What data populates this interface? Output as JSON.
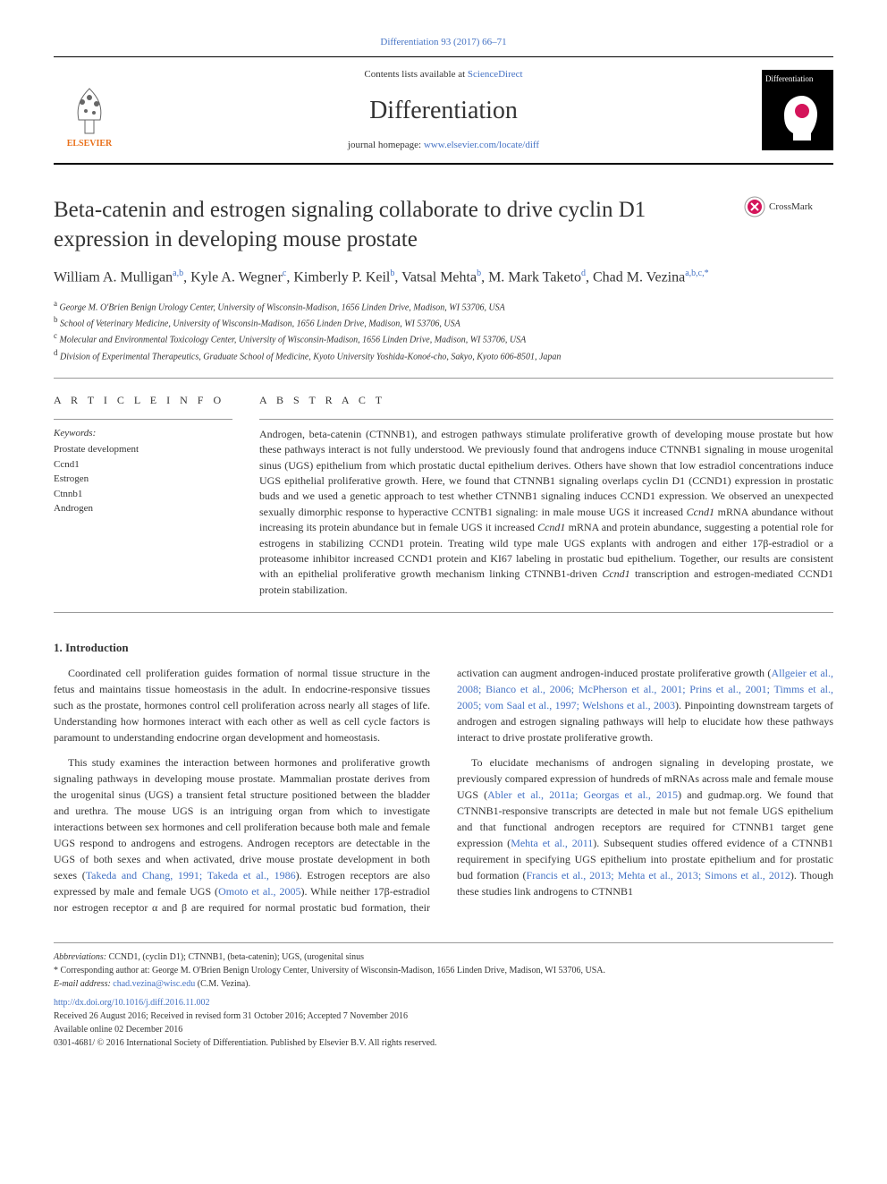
{
  "journal_ref": {
    "text": "Differentiation 93 (2017) 66–71",
    "url_label": "Differentiation 93 (2017) 66–71"
  },
  "header": {
    "contents_pre": "Contents lists available at ",
    "contents_link": "ScienceDirect",
    "journal_name": "Differentiation",
    "homepage_pre": "journal homepage: ",
    "homepage_link": "www.elsevier.com/locate/diff",
    "elsevier_label": "ELSEVIER",
    "diff_logo_label": "Differentiation"
  },
  "crossmark_label": "CrossMark",
  "title": "Beta-catenin and estrogen signaling collaborate to drive cyclin D1 expression in developing mouse prostate",
  "authors_html": "William A. Mulligan<sup>a,b</sup>, Kyle A. Wegner<sup>c</sup>, Kimberly P. Keil<sup>b</sup>, Vatsal Mehta<sup>b</sup>, M. Mark Taketo<sup>d</sup>, Chad M. Vezina<sup>a,b,c,*</sup>",
  "affiliations": [
    {
      "sup": "a",
      "text": "George M. O'Brien Benign Urology Center, University of Wisconsin-Madison, 1656 Linden Drive, Madison, WI 53706, USA"
    },
    {
      "sup": "b",
      "text": "School of Veterinary Medicine, University of Wisconsin-Madison, 1656 Linden Drive, Madison, WI 53706, USA"
    },
    {
      "sup": "c",
      "text": "Molecular and Environmental Toxicology Center, University of Wisconsin-Madison, 1656 Linden Drive, Madison, WI 53706, USA"
    },
    {
      "sup": "d",
      "text": "Division of Experimental Therapeutics, Graduate School of Medicine, Kyoto University Yoshida-Konoé-cho, Sakyo, Kyoto 606-8501, Japan"
    }
  ],
  "article_info_heading": "A R T I C L E  I N F O",
  "abstract_heading": "A B S T R A C T",
  "keywords_label": "Keywords:",
  "keywords": [
    "Prostate development",
    "Ccnd1",
    "Estrogen",
    "Ctnnb1",
    "Androgen"
  ],
  "abstract_text": "Androgen, beta-catenin (CTNNB1), and estrogen pathways stimulate proliferative growth of developing mouse prostate but how these pathways interact is not fully understood. We previously found that androgens induce CTNNB1 signaling in mouse urogenital sinus (UGS) epithelium from which prostatic ductal epithelium derives. Others have shown that low estradiol concentrations induce UGS epithelial proliferative growth. Here, we found that CTNNB1 signaling overlaps cyclin D1 (CCND1) expression in prostatic buds and we used a genetic approach to test whether CTNNB1 signaling induces CCND1 expression. We observed an unexpected sexually dimorphic response to hyperactive CCNTB1 signaling: in male mouse UGS it increased Ccnd1 mRNA abundance without increasing its protein abundance but in female UGS it increased Ccnd1 mRNA and protein abundance, suggesting a potential role for estrogens in stabilizing CCND1 protein. Treating wild type male UGS explants with androgen and either 17β-estradiol or a proteasome inhibitor increased CCND1 protein and KI67 labeling in prostatic bud epithelium. Together, our results are consistent with an epithelial proliferative growth mechanism linking CTNNB1-driven Ccnd1 transcription and estrogen-mediated CCND1 protein stabilization.",
  "intro_heading": "1. Introduction",
  "intro_paragraphs": [
    "Coordinated cell proliferation guides formation of normal tissue structure in the fetus and maintains tissue homeostasis in the adult. In endocrine-responsive tissues such as the prostate, hormones control cell proliferation across nearly all stages of life. Understanding how hormones interact with each other as well as cell cycle factors is paramount to understanding endocrine organ development and homeostasis.",
    "This study examines the interaction between hormones and proliferative growth signaling pathways in developing mouse prostate. Mammalian prostate derives from the urogenital sinus (UGS) a transient fetal structure positioned between the bladder and urethra. The mouse UGS is an intriguing organ from which to investigate interactions between sex hormones and cell proliferation because both male and female UGS respond to androgens and estrogens. Androgen receptors are detectable in the UGS of both sexes and when activated, drive mouse prostate development in both sexes (<a>Takeda and Chang, 1991; Takeda et al., 1986</a>). Estrogen receptors are also expressed by male and female UGS (<a>Omoto et al., 2005</a>). While neither 17β-estradiol nor estrogen receptor α and β are required for normal prostatic bud formation, their activation can augment androgen-induced prostate proliferative growth (<a>Allgeier et al., 2008; Bianco et al., 2006; McPherson et al., 2001; Prins et al., 2001; Timms et al., 2005; vom Saal et al., 1997; Welshons et al., 2003</a>). Pinpointing downstream targets of androgen and estrogen signaling pathways will help to elucidate how these pathways interact to drive prostate proliferative growth.",
    "To elucidate mechanisms of androgen signaling in developing prostate, we previously compared expression of hundreds of mRNAs across male and female mouse UGS (<a>Abler et al., 2011a; Georgas et al., 2015</a>) and gudmap.org. We found that CTNNB1-responsive transcripts are detected in male but not female UGS epithelium and that functional androgen receptors are required for CTNNB1 target gene expression (<a>Mehta et al., 2011</a>). Subsequent studies offered evidence of a CTNNB1 requirement in specifying UGS epithelium into prostate epithelium and for prostatic bud formation (<a>Francis et al., 2013; Mehta et al., 2013; Simons et al., 2012</a>). Though these studies link androgens to CTNNB1"
  ],
  "footer": {
    "abbrev_label": "Abbreviations:",
    "abbrev_text": " CCND1, (cyclin D1); CTNNB1, (beta-catenin); UGS, (urogenital sinus",
    "corresponding": "* Corresponding author at: George M. O'Brien Benign Urology Center, University of Wisconsin-Madison, 1656 Linden Drive, Madison, WI 53706, USA.",
    "email_label": "E-mail address: ",
    "email": "chad.vezina@wisc.edu",
    "email_suffix": " (C.M. Vezina).",
    "doi": "http://dx.doi.org/10.1016/j.diff.2016.11.002",
    "received": "Received 26 August 2016; Received in revised form 31 October 2016; Accepted 7 November 2016",
    "available": "Available online 02 December 2016",
    "copyright": "0301-4681/ © 2016 International Society of Differentiation. Published by Elsevier B.V. All rights reserved."
  },
  "colors": {
    "link": "#4472c4",
    "elsevier_orange": "#e9711c",
    "text": "#333333",
    "rule": "#999999"
  }
}
